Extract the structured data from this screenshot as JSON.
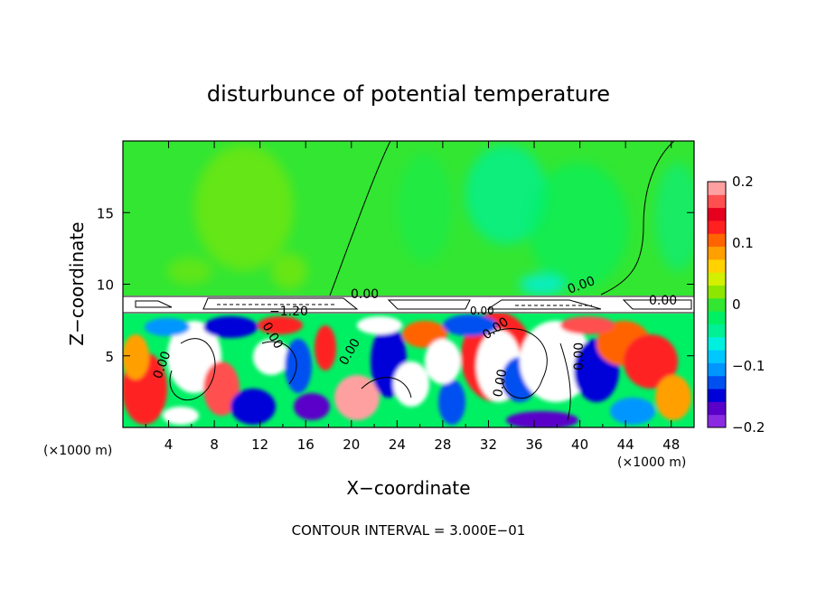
{
  "chart_data": {
    "type": "heatmap",
    "title": "disturbunce of potential temperature",
    "xlabel": "X−coordinate",
    "ylabel": "Z−coordinate",
    "x_unit_left": "(×1000 m)",
    "x_unit_right": "(×1000 m)",
    "xlim": [
      0,
      50
    ],
    "ylim": [
      0,
      20
    ],
    "x_ticks": [
      "4",
      "8",
      "12",
      "16",
      "20",
      "24",
      "28",
      "32",
      "36",
      "40",
      "44",
      "48"
    ],
    "y_ticks": [
      "5",
      "10",
      "15"
    ],
    "colorbar": {
      "range": [
        -0.2,
        0.2
      ],
      "labels": [
        "0.2",
        "0.1",
        "0",
        "−0.1",
        "−0.2"
      ],
      "colors": [
        "#8a2be2",
        "#5a00c8",
        "#0000d8",
        "#0050f0",
        "#0096ff",
        "#00c8ff",
        "#00f0e0",
        "#00f096",
        "#00f064",
        "#32e632",
        "#8ce600",
        "#d2f000",
        "#ffd200",
        "#ffa000",
        "#ff6400",
        "#ff2020",
        "#e6001e",
        "#ff5050",
        "#ffa0a0"
      ]
    },
    "contour_labels": [
      "0.00",
      "0.00",
      "0.00",
      "0.00",
      "0.00",
      "−1.20",
      "0.00",
      "0.00",
      "0.00",
      "0.00",
      "0.00"
    ],
    "contour_interval": "CONTOUR INTERVAL = 3.000E−01",
    "description_values": {
      "upper_region_value": 0.0,
      "boundary_layer_top_z": 8.5
    }
  }
}
